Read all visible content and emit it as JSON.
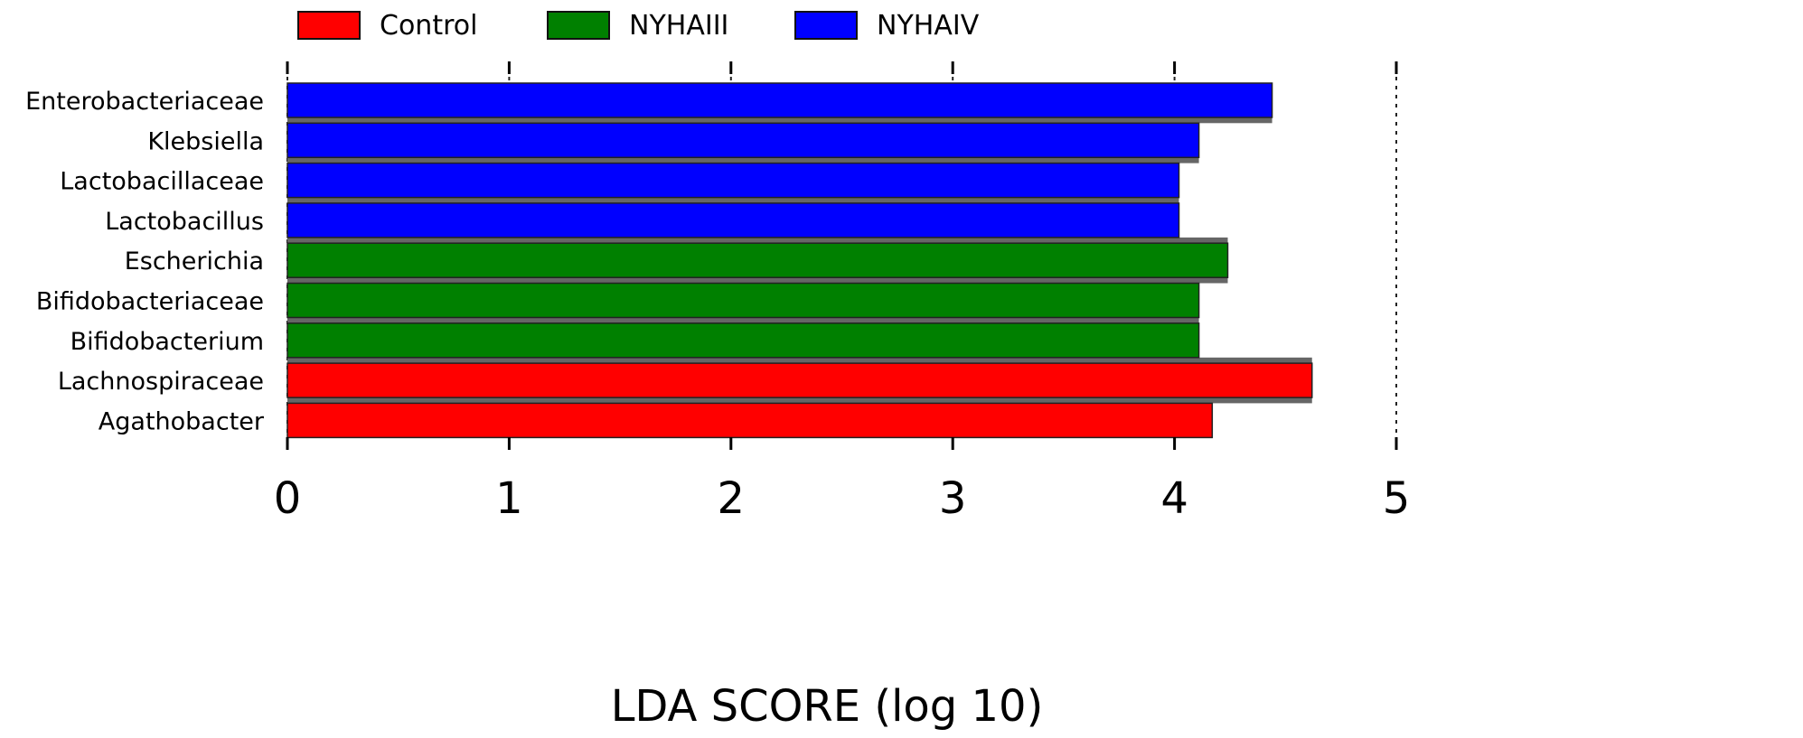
{
  "chart_data": {
    "type": "bar",
    "orientation": "horizontal",
    "xlabel": "LDA SCORE (log 10)",
    "xlim": [
      0,
      5
    ],
    "xticks": [
      "0",
      "1",
      "2",
      "3",
      "4",
      "5"
    ],
    "grid": "vertical dashed lines at ticks",
    "legend_position": "top",
    "groups": [
      {
        "name": "Control",
        "color": "#ff0000"
      },
      {
        "name": "NYHAIII",
        "color": "#008000"
      },
      {
        "name": "NYHAIV",
        "color": "#0000ff"
      }
    ],
    "bars": [
      {
        "label": "Enterobacteriaceae",
        "value": 4.44,
        "group": "NYHAIV"
      },
      {
        "label": "Klebsiella",
        "value": 4.11,
        "group": "NYHAIV"
      },
      {
        "label": "Lactobacillaceae",
        "value": 4.02,
        "group": "NYHAIV"
      },
      {
        "label": "Lactobacillus",
        "value": 4.02,
        "group": "NYHAIV"
      },
      {
        "label": "Escherichia",
        "value": 4.24,
        "group": "NYHAIII"
      },
      {
        "label": "Bifidobacteriaceae",
        "value": 4.11,
        "group": "NYHAIII"
      },
      {
        "label": "Bifidobacterium",
        "value": 4.11,
        "group": "NYHAIII"
      },
      {
        "label": "Lachnospiraceae",
        "value": 4.62,
        "group": "Control"
      },
      {
        "label": "Agathobacter",
        "value": 4.17,
        "group": "Control"
      }
    ]
  }
}
